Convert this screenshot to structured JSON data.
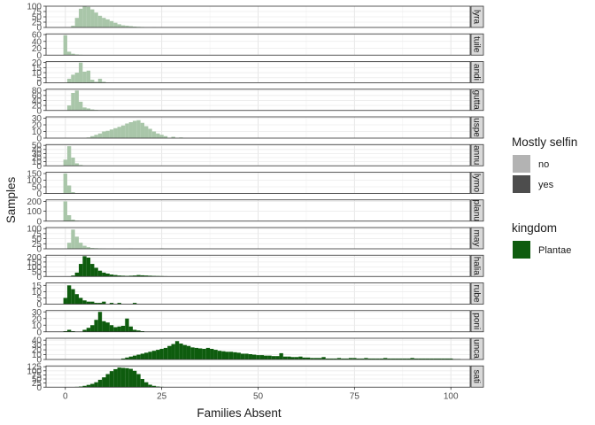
{
  "chart_data": {
    "type": "bar",
    "subtype": "faceted-histogram",
    "xlabel": "Families Absent",
    "ylabel": "Samples",
    "xlim": [
      -5,
      105
    ],
    "x_ticks": [
      0,
      25,
      50,
      75,
      100
    ],
    "grid": true,
    "legend_position": "right",
    "legends": [
      {
        "title": "Mostly selfin",
        "entries": [
          {
            "label": "no",
            "color": "#b3b3b3"
          },
          {
            "label": "yes",
            "color": "#4d4d4d"
          }
        ]
      },
      {
        "title": "kingdom",
        "entries": [
          {
            "label": "Plantae",
            "color": "#0e5c0e"
          }
        ]
      }
    ],
    "colors": {
      "selfing_no": "#a9c6a9",
      "selfing_yes": "#0e5c0e"
    },
    "facets": [
      {
        "label": "lyra",
        "selfing": "no",
        "y_ticks": [
          0,
          25,
          50,
          75,
          100
        ],
        "ylim": [
          0,
          100
        ],
        "bins": [
          [
            2,
            8
          ],
          [
            3,
            45
          ],
          [
            4,
            88
          ],
          [
            5,
            100
          ],
          [
            6,
            97
          ],
          [
            7,
            85
          ],
          [
            8,
            70
          ],
          [
            9,
            55
          ],
          [
            10,
            45
          ],
          [
            11,
            38
          ],
          [
            12,
            30
          ],
          [
            13,
            22
          ],
          [
            14,
            15
          ],
          [
            15,
            10
          ],
          [
            16,
            8
          ],
          [
            17,
            6
          ],
          [
            18,
            4
          ],
          [
            19,
            3
          ],
          [
            20,
            2
          ],
          [
            23,
            1
          ]
        ]
      },
      {
        "label": "tuile",
        "selfing": "no",
        "y_ticks": [
          0,
          20,
          40,
          60
        ],
        "ylim": [
          0,
          62
        ],
        "bins": [
          [
            0,
            58
          ],
          [
            1,
            10
          ],
          [
            2,
            4
          ],
          [
            3,
            2
          ],
          [
            4,
            1
          ]
        ]
      },
      {
        "label": "andi",
        "selfing": "no",
        "y_ticks": [
          0,
          5,
          10,
          15,
          20
        ],
        "ylim": [
          0,
          21
        ],
        "bins": [
          [
            1,
            4
          ],
          [
            2,
            8
          ],
          [
            3,
            10
          ],
          [
            4,
            20
          ],
          [
            5,
            11
          ],
          [
            6,
            12
          ],
          [
            7,
            3
          ],
          [
            8,
            1
          ],
          [
            9,
            4
          ],
          [
            10,
            1
          ]
        ]
      },
      {
        "label": "gutta",
        "selfing": "no",
        "y_ticks": [
          0,
          20,
          40,
          60,
          80
        ],
        "ylim": [
          0,
          85
        ],
        "bins": [
          [
            1,
            20
          ],
          [
            2,
            70
          ],
          [
            3,
            80
          ],
          [
            4,
            35
          ],
          [
            5,
            12
          ],
          [
            6,
            8
          ],
          [
            7,
            4
          ],
          [
            8,
            2
          ],
          [
            10,
            1
          ]
        ]
      },
      {
        "label": "uspe",
        "selfing": "no",
        "y_ticks": [
          0,
          10,
          20,
          30
        ],
        "ylim": [
          0,
          32
        ],
        "bins": [
          [
            6,
            1
          ],
          [
            7,
            3
          ],
          [
            8,
            5
          ],
          [
            9,
            7
          ],
          [
            10,
            10
          ],
          [
            11,
            11
          ],
          [
            12,
            13
          ],
          [
            13,
            15
          ],
          [
            14,
            17
          ],
          [
            15,
            19
          ],
          [
            16,
            22
          ],
          [
            17,
            24
          ],
          [
            18,
            26
          ],
          [
            19,
            27
          ],
          [
            20,
            23
          ],
          [
            21,
            18
          ],
          [
            22,
            14
          ],
          [
            23,
            10
          ],
          [
            24,
            7
          ],
          [
            25,
            5
          ],
          [
            26,
            3
          ],
          [
            28,
            2
          ],
          [
            30,
            1
          ]
        ]
      },
      {
        "label": "annu",
        "selfing": "no",
        "y_ticks": [
          0,
          10,
          20,
          30,
          40,
          50
        ],
        "ylim": [
          0,
          52
        ],
        "bins": [
          [
            0,
            15
          ],
          [
            1,
            48
          ],
          [
            2,
            20
          ],
          [
            3,
            6
          ],
          [
            4,
            2
          ]
        ]
      },
      {
        "label": "lymo",
        "selfing": "no",
        "y_ticks": [
          0,
          50,
          100,
          150
        ],
        "ylim": [
          0,
          160
        ],
        "bins": [
          [
            0,
            150
          ],
          [
            1,
            60
          ],
          [
            2,
            10
          ]
        ]
      },
      {
        "label": "planu",
        "selfing": "no",
        "y_ticks": [
          0,
          100,
          200
        ],
        "ylim": [
          0,
          215
        ],
        "bins": [
          [
            0,
            200
          ],
          [
            1,
            60
          ],
          [
            2,
            15
          ],
          [
            3,
            4
          ],
          [
            4,
            2
          ]
        ]
      },
      {
        "label": "may",
        "selfing": "no",
        "y_ticks": [
          0,
          25,
          50,
          75,
          100
        ],
        "ylim": [
          0,
          105
        ],
        "bins": [
          [
            1,
            30
          ],
          [
            2,
            95
          ],
          [
            3,
            60
          ],
          [
            4,
            30
          ],
          [
            5,
            15
          ],
          [
            6,
            8
          ],
          [
            7,
            4
          ],
          [
            8,
            3
          ],
          [
            9,
            2
          ],
          [
            10,
            1
          ],
          [
            17,
            1
          ],
          [
            25,
            2
          ]
        ]
      },
      {
        "label": "halia",
        "selfing": "yes",
        "y_ticks": [
          0,
          50,
          100,
          150,
          200
        ],
        "ylim": [
          0,
          220
        ],
        "bins": [
          [
            2,
            10
          ],
          [
            3,
            40
          ],
          [
            4,
            130
          ],
          [
            5,
            210
          ],
          [
            6,
            195
          ],
          [
            7,
            130
          ],
          [
            8,
            90
          ],
          [
            9,
            60
          ],
          [
            10,
            40
          ],
          [
            11,
            30
          ],
          [
            12,
            20
          ],
          [
            13,
            15
          ],
          [
            14,
            10
          ],
          [
            15,
            8
          ],
          [
            16,
            6
          ],
          [
            17,
            8
          ],
          [
            18,
            10
          ],
          [
            19,
            15
          ],
          [
            20,
            12
          ],
          [
            21,
            10
          ],
          [
            22,
            8
          ],
          [
            23,
            6
          ],
          [
            24,
            5
          ],
          [
            25,
            4
          ],
          [
            26,
            3
          ],
          [
            28,
            2
          ]
        ]
      },
      {
        "label": "rube",
        "selfing": "yes",
        "y_ticks": [
          0,
          5,
          10,
          15
        ],
        "ylim": [
          0,
          17
        ],
        "bins": [
          [
            0,
            5
          ],
          [
            1,
            15
          ],
          [
            2,
            12
          ],
          [
            3,
            8
          ],
          [
            4,
            5
          ],
          [
            5,
            3
          ],
          [
            6,
            2
          ],
          [
            7,
            2
          ],
          [
            8,
            1
          ],
          [
            9,
            1
          ],
          [
            10,
            2
          ],
          [
            12,
            1
          ],
          [
            14,
            1
          ],
          [
            18,
            1
          ]
        ]
      },
      {
        "label": "poni",
        "selfing": "yes",
        "y_ticks": [
          0,
          10,
          20,
          30
        ],
        "ylim": [
          0,
          32
        ],
        "bins": [
          [
            0,
            1
          ],
          [
            1,
            3
          ],
          [
            2,
            1
          ],
          [
            5,
            3
          ],
          [
            6,
            6
          ],
          [
            7,
            10
          ],
          [
            8,
            18
          ],
          [
            9,
            30
          ],
          [
            10,
            16
          ],
          [
            11,
            14
          ],
          [
            12,
            10
          ],
          [
            13,
            7
          ],
          [
            14,
            8
          ],
          [
            15,
            9
          ],
          [
            16,
            20
          ],
          [
            17,
            8
          ],
          [
            18,
            3
          ],
          [
            19,
            2
          ],
          [
            20,
            1
          ]
        ]
      },
      {
        "label": "unca",
        "selfing": "yes",
        "y_ticks": [
          0,
          10,
          20,
          30,
          40
        ],
        "ylim": [
          0,
          44
        ],
        "bins": [
          [
            15,
            2
          ],
          [
            16,
            4
          ],
          [
            17,
            6
          ],
          [
            18,
            8
          ],
          [
            19,
            10
          ],
          [
            20,
            12
          ],
          [
            21,
            14
          ],
          [
            22,
            16
          ],
          [
            23,
            18
          ],
          [
            24,
            20
          ],
          [
            25,
            22
          ],
          [
            26,
            24
          ],
          [
            27,
            28
          ],
          [
            28,
            32
          ],
          [
            29,
            38
          ],
          [
            30,
            33
          ],
          [
            31,
            30
          ],
          [
            32,
            28
          ],
          [
            33,
            25
          ],
          [
            34,
            24
          ],
          [
            35,
            23
          ],
          [
            36,
            22
          ],
          [
            37,
            24
          ],
          [
            38,
            22
          ],
          [
            39,
            20
          ],
          [
            40,
            18
          ],
          [
            41,
            17
          ],
          [
            42,
            16
          ],
          [
            43,
            16
          ],
          [
            44,
            15
          ],
          [
            45,
            14
          ],
          [
            46,
            12
          ],
          [
            47,
            12
          ],
          [
            48,
            11
          ],
          [
            49,
            10
          ],
          [
            50,
            9
          ],
          [
            51,
            9
          ],
          [
            52,
            8
          ],
          [
            53,
            8
          ],
          [
            54,
            7
          ],
          [
            55,
            7
          ],
          [
            56,
            13
          ],
          [
            57,
            6
          ],
          [
            58,
            6
          ],
          [
            59,
            5
          ],
          [
            60,
            5
          ],
          [
            61,
            6
          ],
          [
            62,
            4
          ],
          [
            63,
            4
          ],
          [
            64,
            3
          ],
          [
            65,
            3
          ],
          [
            66,
            3
          ],
          [
            67,
            5
          ],
          [
            68,
            2
          ],
          [
            69,
            2
          ],
          [
            70,
            2
          ],
          [
            71,
            3
          ],
          [
            72,
            2
          ],
          [
            73,
            2
          ],
          [
            74,
            3
          ],
          [
            75,
            3
          ],
          [
            76,
            2
          ],
          [
            77,
            2
          ],
          [
            78,
            3
          ],
          [
            79,
            2
          ],
          [
            80,
            2
          ],
          [
            81,
            2
          ],
          [
            82,
            2
          ],
          [
            83,
            3
          ],
          [
            84,
            2
          ],
          [
            85,
            2
          ],
          [
            86,
            2
          ],
          [
            87,
            2
          ],
          [
            88,
            2
          ],
          [
            89,
            2
          ],
          [
            90,
            3
          ],
          [
            91,
            2
          ],
          [
            92,
            2
          ],
          [
            93,
            2
          ],
          [
            94,
            2
          ],
          [
            95,
            2
          ],
          [
            96,
            2
          ],
          [
            97,
            2
          ],
          [
            98,
            2
          ],
          [
            99,
            2
          ],
          [
            100,
            2
          ],
          [
            101,
            1
          ],
          [
            102,
            1
          ]
        ]
      },
      {
        "label": "sati",
        "selfing": "yes",
        "y_ticks": [
          0,
          25,
          50,
          75,
          100,
          125
        ],
        "ylim": [
          0,
          130
        ],
        "bins": [
          [
            3,
            2
          ],
          [
            4,
            4
          ],
          [
            5,
            8
          ],
          [
            6,
            14
          ],
          [
            7,
            20
          ],
          [
            8,
            30
          ],
          [
            9,
            45
          ],
          [
            10,
            60
          ],
          [
            11,
            80
          ],
          [
            12,
            98
          ],
          [
            13,
            110
          ],
          [
            14,
            120
          ],
          [
            15,
            118
          ],
          [
            16,
            116
          ],
          [
            17,
            112
          ],
          [
            18,
            100
          ],
          [
            19,
            80
          ],
          [
            20,
            50
          ],
          [
            21,
            30
          ],
          [
            22,
            15
          ],
          [
            23,
            8
          ],
          [
            24,
            4
          ],
          [
            25,
            2
          ]
        ]
      }
    ]
  }
}
